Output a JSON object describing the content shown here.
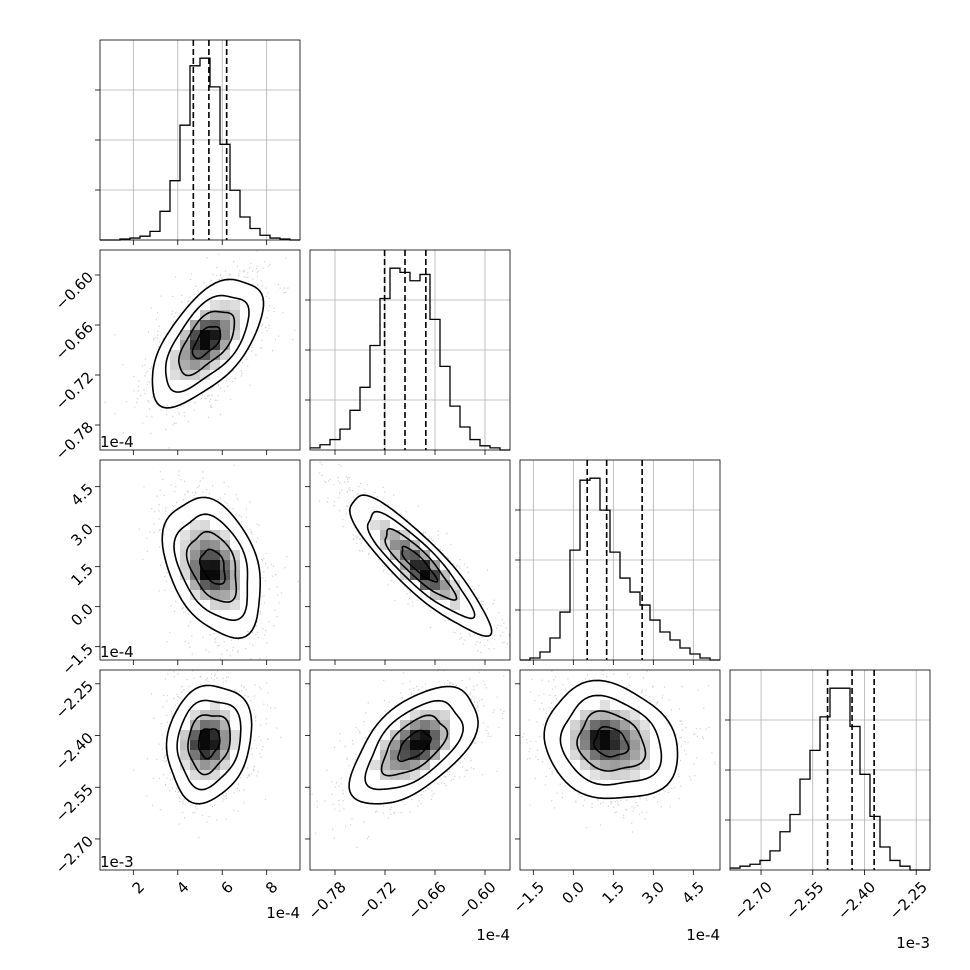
{
  "chart_data": {
    "type": "corner",
    "grid": true,
    "parameters": [
      {
        "scale_label": "1e-4",
        "range": [
          0.5,
          9.5
        ],
        "ticks": [
          {
            "v": 2,
            "t": "2"
          },
          {
            "v": 4,
            "t": "4"
          },
          {
            "v": 6,
            "t": "6"
          },
          {
            "v": 8,
            "t": "8"
          }
        ],
        "quantiles": [
          4.7,
          5.4,
          6.2
        ],
        "hist": {
          "edges_start": 0.5,
          "bin_width": 0.45,
          "counts": [
            0,
            0,
            1,
            2,
            4,
            9,
            30,
            62,
            120,
            182,
            190,
            160,
            100,
            52,
            24,
            12,
            5,
            2,
            1,
            0
          ]
        }
      },
      {
        "scale_label": "1e-4",
        "range": [
          -0.81,
          -0.57
        ],
        "ticks": [
          {
            "v": -0.78,
            "t": "−0.78"
          },
          {
            "v": -0.72,
            "t": "−0.72"
          },
          {
            "v": -0.66,
            "t": "−0.66"
          },
          {
            "v": -0.6,
            "t": "−0.60"
          }
        ],
        "quantiles": [
          -0.7205,
          -0.696,
          -0.671
        ],
        "hist": {
          "edges_start": -0.81,
          "bin_width": 0.012,
          "counts": [
            2,
            5,
            10,
            20,
            38,
            60,
            100,
            145,
            174,
            170,
            162,
            168,
            125,
            80,
            42,
            22,
            10,
            4,
            2,
            0
          ]
        }
      },
      {
        "scale_label": "1e-4",
        "range": [
          -2.0,
          5.5
        ],
        "ticks": [
          {
            "v": -1.5,
            "t": "−1.5"
          },
          {
            "v": 0.0,
            "t": "0.0"
          },
          {
            "v": 1.5,
            "t": "1.5"
          },
          {
            "v": 3.0,
            "t": "3.0"
          },
          {
            "v": 4.5,
            "t": "4.5"
          }
        ],
        "quantiles": [
          0.52,
          1.25,
          2.58
        ],
        "hist": {
          "edges_start": -2.0,
          "bin_width": 0.375,
          "counts": [
            0,
            2,
            8,
            22,
            48,
            110,
            180,
            182,
            150,
            108,
            82,
            68,
            55,
            40,
            28,
            20,
            12,
            6,
            2,
            0
          ]
        }
      },
      {
        "scale_label": "1e-3",
        "range": [
          -2.79,
          -2.21
        ],
        "ticks": [
          {
            "v": -2.7,
            "t": "−2.70"
          },
          {
            "v": -2.55,
            "t": "−2.55"
          },
          {
            "v": -2.4,
            "t": "−2.40"
          },
          {
            "v": -2.25,
            "t": "−2.25"
          }
        ],
        "quantiles": [
          -2.507,
          -2.436,
          -2.372
        ],
        "hist": {
          "edges_start": -2.79,
          "bin_width": 0.029,
          "counts": [
            2,
            4,
            6,
            10,
            20,
            40,
            58,
            95,
            125,
            160,
            190,
            190,
            150,
            100,
            56,
            24,
            10,
            4,
            0,
            0
          ]
        }
      }
    ],
    "pairs": [
      {
        "row": 1,
        "col": 0,
        "center": [
          5.3,
          -0.68
        ],
        "sd": [
          1.25,
          0.038
        ],
        "rho": 0.6,
        "peak": [
          5.2,
          -0.675
        ]
      },
      {
        "row": 2,
        "col": 0,
        "center": [
          5.6,
          1.5
        ],
        "sd": [
          1.1,
          1.3
        ],
        "rho": -0.35,
        "peak": [
          5.3,
          1.2
        ]
      },
      {
        "row": 2,
        "col": 1,
        "center": [
          -0.68,
          1.6
        ],
        "sd": [
          0.042,
          1.3
        ],
        "rho": -0.88,
        "peak": [
          -0.675,
          1.1
        ]
      },
      {
        "row": 3,
        "col": 0,
        "center": [
          5.4,
          -2.42
        ],
        "sd": [
          0.95,
          0.085
        ],
        "rho": 0.15,
        "peak": [
          5.2,
          -2.42
        ]
      },
      {
        "row": 3,
        "col": 1,
        "center": [
          -0.685,
          -2.43
        ],
        "sd": [
          0.038,
          0.085
        ],
        "rho": 0.55,
        "peak": [
          -0.675,
          -2.42
        ]
      },
      {
        "row": 3,
        "col": 2,
        "center": [
          1.4,
          -2.42
        ],
        "sd": [
          1.25,
          0.085
        ],
        "rho": -0.15,
        "peak": [
          1.0,
          -2.41
        ]
      }
    ]
  }
}
